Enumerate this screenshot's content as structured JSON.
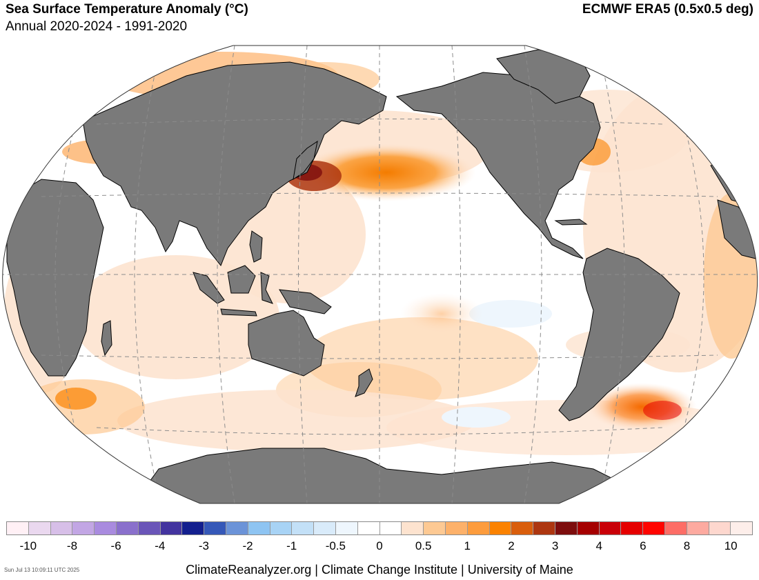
{
  "header": {
    "title": "Sea Surface Temperature Anomaly (°C)",
    "subtitle": "Annual 2020-2024 - 1991-2020",
    "dataset": "ECMWF ERA5 (0.5x0.5 deg)"
  },
  "map": {
    "projection": "Robinson, Pacific-centered",
    "ocean_color": "#ffffff",
    "land_color": "#7a7a7a",
    "coast_color": "#000000",
    "graticule_color": "#8c8c8c"
  },
  "colorbar": {
    "colors": [
      "#fff0f5",
      "#ead8ef",
      "#d7bfe8",
      "#c2a6e4",
      "#a98bdf",
      "#8a70cc",
      "#6a55b8",
      "#43349f",
      "#131f8e",
      "#3558b8",
      "#6b93d8",
      "#8ec4f2",
      "#a8d3f5",
      "#c3e0f7",
      "#d9ebfa",
      "#eef6fd",
      "#ffffff",
      "#ffffff",
      "#fde3cf",
      "#fdc993",
      "#fdb16a",
      "#fd9c3d",
      "#fb8200",
      "#d95e0c",
      "#ad3610",
      "#7d0d0d",
      "#a50000",
      "#c90008",
      "#e50000",
      "#ff0500",
      "#fd6d66",
      "#fdaaa0",
      "#fdd7ce",
      "#fdeeea"
    ],
    "tick_labels": [
      "-10",
      "-8",
      "-6",
      "-4",
      "-3",
      "-2",
      "-1",
      "-0.5",
      "0",
      "0.5",
      "1",
      "2",
      "3",
      "4",
      "6",
      "8",
      "10"
    ]
  },
  "footer": {
    "timestamp": "Sun Jul 13 10:09:11 UTC 2025",
    "credit": "ClimateReanalyzer.org | Climate Change Institute | University of Maine"
  }
}
